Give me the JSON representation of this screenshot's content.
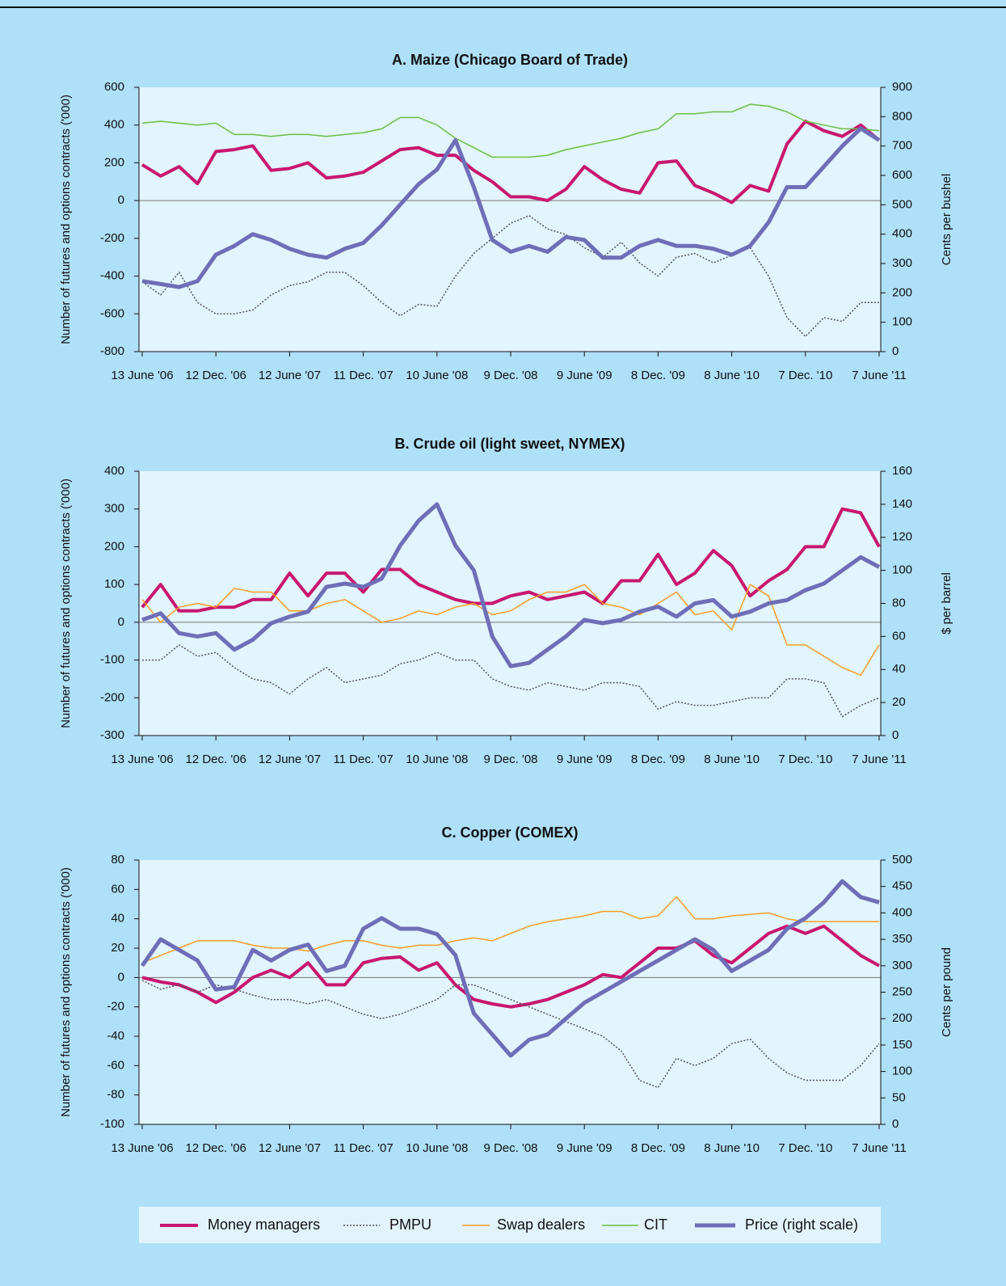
{
  "chart_data": [
    {
      "type": "line",
      "title": "A. Maize (Chicago Board of Trade)",
      "y_label": "Number of futures and options contracts ('000)",
      "y2_label": "Cents per bushel",
      "categories": [
        "13 June '06",
        null,
        null,
        null,
        "12 Dec. '06",
        null,
        null,
        null,
        "12 June '07",
        null,
        null,
        null,
        "11 Dec. '07",
        null,
        null,
        null,
        "10 June '08",
        null,
        null,
        null,
        "9 Dec. '08",
        null,
        null,
        null,
        "9 June '09",
        null,
        null,
        null,
        "8 Dec. '09",
        null,
        null,
        null,
        "8 June '10",
        null,
        null,
        null,
        "7 Dec. '10",
        null,
        null,
        null,
        "7 June '11"
      ],
      "ylim": [
        -800,
        600
      ],
      "yticks": [
        -800,
        -600,
        -400,
        -200,
        0,
        200,
        400,
        600
      ],
      "y2lim": [
        0,
        900
      ],
      "y2ticks": [
        0,
        100,
        200,
        300,
        400,
        500,
        600,
        700,
        800,
        900
      ],
      "series": [
        {
          "name": "Money managers",
          "color": "#c8176f",
          "line_style": "solid",
          "line_width": 4,
          "values": [
            190,
            130,
            180,
            90,
            260,
            270,
            290,
            160,
            170,
            200,
            120,
            130,
            150,
            210,
            270,
            280,
            240,
            240,
            160,
            100,
            20,
            20,
            0,
            60,
            180,
            110,
            60,
            40,
            200,
            210,
            80,
            40,
            -10,
            80,
            50,
            300,
            420,
            370,
            340,
            400,
            320
          ]
        },
        {
          "name": "PMPU",
          "color": "#555555",
          "line_style": "dotted",
          "line_width": 1.5,
          "values": [
            -430,
            -500,
            -380,
            -540,
            -600,
            -600,
            -580,
            -500,
            -450,
            -430,
            -380,
            -380,
            -450,
            -540,
            -610,
            -550,
            -560,
            -400,
            -280,
            -200,
            -120,
            -80,
            -150,
            -180,
            -250,
            -300,
            -220,
            -330,
            -400,
            -300,
            -280,
            -330,
            -290,
            -250,
            -400,
            -620,
            -720,
            -620,
            -640,
            -540,
            -540
          ]
        },
        {
          "name": "CIT",
          "color": "#6cbf3e",
          "line_style": "solid",
          "line_width": 1.5,
          "values": [
            410,
            420,
            410,
            400,
            410,
            350,
            350,
            340,
            350,
            350,
            340,
            350,
            360,
            380,
            440,
            440,
            400,
            330,
            280,
            230,
            230,
            230,
            240,
            270,
            290,
            310,
            330,
            360,
            380,
            460,
            460,
            470,
            470,
            510,
            500,
            470,
            420,
            400,
            380,
            380,
            370
          ]
        },
        {
          "name": "Price (right scale)",
          "color": "#6e6eb8",
          "line_style": "solid",
          "line_width": 5,
          "axis": "y2",
          "values": [
            240,
            230,
            220,
            240,
            330,
            360,
            400,
            380,
            350,
            330,
            320,
            350,
            370,
            430,
            500,
            570,
            620,
            720,
            560,
            380,
            340,
            360,
            340,
            390,
            380,
            320,
            320,
            360,
            380,
            360,
            360,
            350,
            330,
            360,
            440,
            560,
            560,
            630,
            700,
            760,
            720
          ]
        }
      ]
    },
    {
      "type": "line",
      "title": "B. Crude oil (light sweet, NYMEX)",
      "y_label": "Number of futures and options contracts ('000)",
      "y2_label": "$ per barrel",
      "categories": [
        "13 June '06",
        null,
        null,
        null,
        "12 Dec. '06",
        null,
        null,
        null,
        "12 June '07",
        null,
        null,
        null,
        "11 Dec. '07",
        null,
        null,
        null,
        "10 June '08",
        null,
        null,
        null,
        "9 Dec. '08",
        null,
        null,
        null,
        "9 June '09",
        null,
        null,
        null,
        "8 Dec. '09",
        null,
        null,
        null,
        "8 June '10",
        null,
        null,
        null,
        "7 Dec. '10",
        null,
        null,
        null,
        "7 June '11"
      ],
      "ylim": [
        -300,
        400
      ],
      "yticks": [
        -300,
        -200,
        -100,
        0,
        100,
        200,
        300,
        400
      ],
      "y2lim": [
        0,
        160
      ],
      "y2ticks": [
        0,
        20,
        40,
        60,
        80,
        100,
        120,
        140,
        160
      ],
      "series": [
        {
          "name": "Money managers",
          "color": "#c8176f",
          "line_style": "solid",
          "line_width": 4,
          "values": [
            40,
            100,
            30,
            30,
            40,
            40,
            60,
            60,
            130,
            70,
            130,
            130,
            80,
            140,
            140,
            100,
            80,
            60,
            50,
            50,
            70,
            80,
            60,
            70,
            80,
            50,
            110,
            110,
            180,
            100,
            130,
            190,
            150,
            70,
            110,
            140,
            200,
            200,
            300,
            290,
            200
          ]
        },
        {
          "name": "PMPU",
          "color": "#555555",
          "line_style": "dotted",
          "line_width": 1.5,
          "values": [
            -100,
            -100,
            -60,
            -90,
            -80,
            -120,
            -150,
            -160,
            -190,
            -150,
            -120,
            -160,
            -150,
            -140,
            -110,
            -100,
            -80,
            -100,
            -100,
            -150,
            -170,
            -180,
            -160,
            -170,
            -180,
            -160,
            -160,
            -170,
            -230,
            -210,
            -220,
            -220,
            -210,
            -200,
            -200,
            -150,
            -150,
            -160,
            -250,
            -220,
            -200
          ]
        },
        {
          "name": "Swap dealers",
          "color": "#f5a020",
          "line_style": "solid",
          "line_width": 1.5,
          "values": [
            60,
            0,
            40,
            50,
            40,
            90,
            80,
            80,
            30,
            30,
            50,
            60,
            30,
            0,
            10,
            30,
            20,
            40,
            50,
            20,
            30,
            60,
            80,
            80,
            100,
            50,
            40,
            20,
            50,
            80,
            20,
            30,
            -20,
            100,
            70,
            -60,
            -60,
            -90,
            -120,
            -140,
            -60
          ]
        },
        {
          "name": "Price (right scale)",
          "color": "#6e6eb8",
          "line_style": "solid",
          "line_width": 5,
          "axis": "y2",
          "values": [
            70,
            74,
            62,
            60,
            62,
            52,
            58,
            68,
            72,
            75,
            90,
            92,
            90,
            95,
            115,
            130,
            140,
            115,
            100,
            60,
            42,
            44,
            52,
            60,
            70,
            68,
            70,
            75,
            78,
            72,
            80,
            82,
            72,
            75,
            80,
            82,
            88,
            92,
            100,
            108,
            102
          ]
        }
      ]
    },
    {
      "type": "line",
      "title": "C. Copper (COMEX)",
      "y_label": "Number of futures and options contracts ('000)",
      "y2_label": "Cents per pound",
      "categories": [
        "13 June '06",
        null,
        null,
        null,
        "12 Dec. '06",
        null,
        null,
        null,
        "12 June '07",
        null,
        null,
        null,
        "11 Dec. '07",
        null,
        null,
        null,
        "10 June '08",
        null,
        null,
        null,
        "9 Dec. '08",
        null,
        null,
        null,
        "9 June '09",
        null,
        null,
        null,
        "8 Dec. '09",
        null,
        null,
        null,
        "8 June '10",
        null,
        null,
        null,
        "7 Dec. '10",
        null,
        null,
        null,
        "7 June '11"
      ],
      "ylim": [
        -100,
        80
      ],
      "yticks": [
        -100,
        -80,
        -60,
        -40,
        -20,
        0,
        20,
        40,
        60,
        80
      ],
      "y2lim": [
        0,
        500
      ],
      "y2ticks": [
        0,
        50,
        100,
        150,
        200,
        250,
        300,
        350,
        400,
        450,
        500
      ],
      "series": [
        {
          "name": "Money managers",
          "color": "#c8176f",
          "line_style": "solid",
          "line_width": 4,
          "values": [
            0,
            -3,
            -5,
            -10,
            -17,
            -10,
            0,
            5,
            0,
            10,
            -5,
            -5,
            10,
            13,
            14,
            5,
            10,
            -5,
            -15,
            -18,
            -20,
            -18,
            -15,
            -10,
            -5,
            2,
            0,
            10,
            20,
            20,
            25,
            15,
            10,
            20,
            30,
            35,
            30,
            35,
            25,
            15,
            8
          ]
        },
        {
          "name": "PMPU",
          "color": "#555555",
          "line_style": "dotted",
          "line_width": 1.5,
          "values": [
            -2,
            -8,
            -5,
            -10,
            -5,
            -8,
            -12,
            -15,
            -15,
            -18,
            -15,
            -20,
            -25,
            -28,
            -25,
            -20,
            -15,
            -5,
            -5,
            -10,
            -15,
            -20,
            -25,
            -30,
            -35,
            -40,
            -50,
            -70,
            -75,
            -55,
            -60,
            -55,
            -45,
            -42,
            -55,
            -65,
            -70,
            -70,
            -70,
            -60,
            -45
          ]
        },
        {
          "name": "Swap dealers",
          "color": "#f5a020",
          "line_style": "solid",
          "line_width": 1.5,
          "values": [
            10,
            15,
            20,
            25,
            25,
            25,
            22,
            20,
            20,
            18,
            22,
            25,
            25,
            22,
            20,
            22,
            22,
            25,
            27,
            25,
            30,
            35,
            38,
            40,
            42,
            45,
            45,
            40,
            42,
            55,
            40,
            40,
            42,
            43,
            44,
            40,
            38,
            38,
            38,
            38,
            38
          ]
        },
        {
          "name": "Price (right scale)",
          "color": "#6e6eb8",
          "line_style": "solid",
          "line_width": 5,
          "axis": "y2",
          "values": [
            300,
            350,
            330,
            310,
            255,
            260,
            330,
            310,
            330,
            340,
            290,
            300,
            370,
            390,
            370,
            370,
            360,
            320,
            210,
            170,
            130,
            160,
            170,
            200,
            230,
            250,
            270,
            290,
            310,
            330,
            350,
            330,
            290,
            310,
            330,
            370,
            390,
            420,
            460,
            430,
            420
          ]
        }
      ]
    }
  ]
}
